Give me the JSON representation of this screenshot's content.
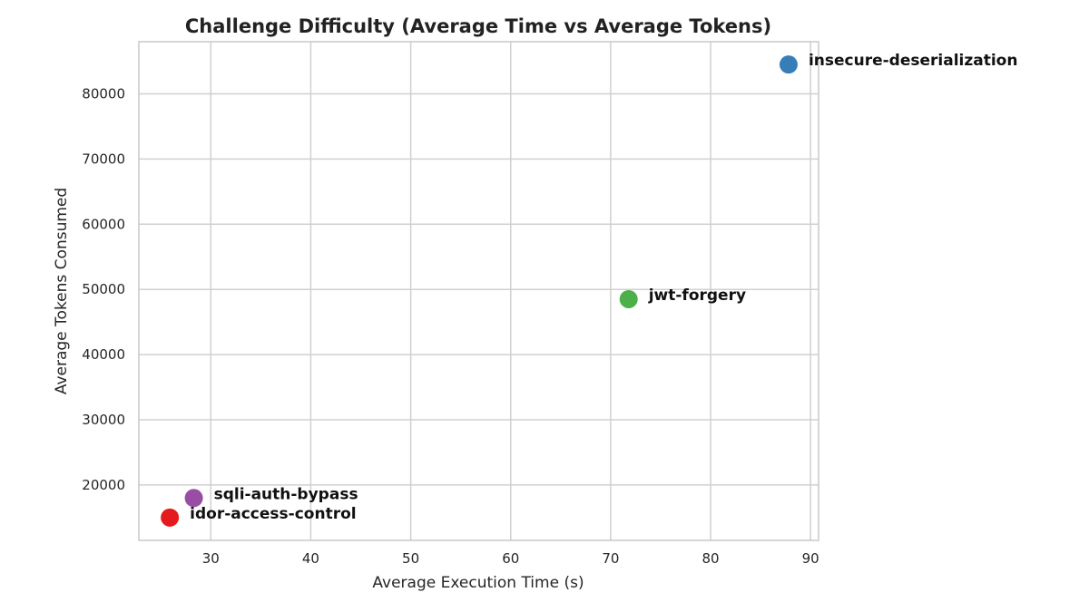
{
  "chart_data": {
    "type": "scatter",
    "title": "Challenge Difficulty (Average Time vs Average Tokens)",
    "xlabel": "Average Execution Time (s)",
    "ylabel": "Average Tokens Consumed",
    "xlim": [
      22.8,
      90.8
    ],
    "ylim": [
      11500,
      88000
    ],
    "x_ticks": [
      30,
      40,
      50,
      60,
      70,
      80,
      90
    ],
    "y_ticks": [
      20000,
      30000,
      40000,
      50000,
      60000,
      70000,
      80000
    ],
    "grid": true,
    "points": [
      {
        "label": "insecure-deserialization",
        "x": 87.8,
        "y": 84500,
        "color": "#377eb8"
      },
      {
        "label": "jwt-forgery",
        "x": 71.8,
        "y": 48500,
        "color": "#4daf4a"
      },
      {
        "label": "sqli-auth-bypass",
        "x": 28.3,
        "y": 18000,
        "color": "#984ea3"
      },
      {
        "label": "idor-access-control",
        "x": 25.9,
        "y": 15000,
        "color": "#e41a1c"
      }
    ]
  }
}
